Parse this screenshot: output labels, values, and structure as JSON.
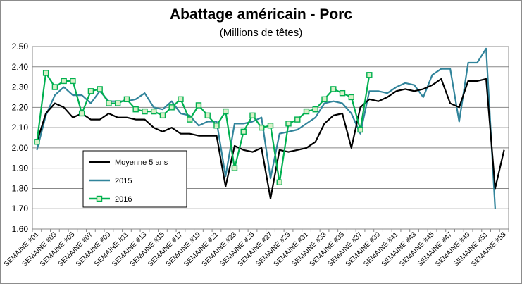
{
  "chart_data": {
    "type": "line",
    "title": "Abattage américain - Porc",
    "subtitle": "(Millions de têtes)",
    "ylim": [
      1.6,
      2.5
    ],
    "y_ticks": [
      "1.60",
      "1.70",
      "1.80",
      "1.90",
      "2.00",
      "2.10",
      "2.20",
      "2.30",
      "2.40",
      "2.50"
    ],
    "grid": true,
    "legend_position": "lower-left",
    "x_tick_labels": [
      "SEMAINE #01",
      "SEMAINE #03",
      "SEMAINE #05",
      "SEMAINE #07",
      "SEMAINE #09",
      "SEMAINE #11",
      "SEMAINE #13",
      "SEMAINE #15",
      "SEMAINE #17",
      "SEMAINE #19",
      "SEMAINE #21",
      "SEMAINE #23",
      "SEMAINE #25",
      "SEMAINE #27",
      "SEMAINE #29",
      "SEMAINE #31",
      "SEMAINE #33",
      "SEMAINE #35",
      "SEMAINE #37",
      "SEMAINE #39",
      "SEMAINE #41",
      "SEMAINE #43",
      "SEMAINE #45",
      "SEMAINE #47",
      "SEMAINE #49",
      "SEMAINE #51",
      "SEMAINE #53"
    ],
    "x": [
      1,
      2,
      3,
      4,
      5,
      6,
      7,
      8,
      9,
      10,
      11,
      12,
      13,
      14,
      15,
      16,
      17,
      18,
      19,
      20,
      21,
      22,
      23,
      24,
      25,
      26,
      27,
      28,
      29,
      30,
      31,
      32,
      33,
      34,
      35,
      36,
      37,
      38,
      39,
      40,
      41,
      42,
      43,
      44,
      45,
      46,
      47,
      48,
      49,
      50,
      51,
      52,
      53
    ],
    "series": [
      {
        "name": "Moyenne 5 ans",
        "color": "#000000",
        "values": [
          2.03,
          2.17,
          2.22,
          2.2,
          2.15,
          2.17,
          2.14,
          2.14,
          2.17,
          2.15,
          2.15,
          2.14,
          2.14,
          2.1,
          2.08,
          2.1,
          2.07,
          2.07,
          2.06,
          2.06,
          2.06,
          1.81,
          2.01,
          1.99,
          1.98,
          2.0,
          1.75,
          1.99,
          1.98,
          1.99,
          2.0,
          2.03,
          2.12,
          2.16,
          2.17,
          2.0,
          2.2,
          2.24,
          2.23,
          2.25,
          2.28,
          2.29,
          2.28,
          2.29,
          2.31,
          2.34,
          2.22,
          2.2,
          2.33,
          2.33,
          2.34,
          1.8,
          1.99
        ]
      },
      {
        "name": "2015",
        "color": "#31849b",
        "values": [
          1.99,
          2.16,
          2.26,
          2.3,
          2.26,
          2.26,
          2.22,
          2.28,
          2.23,
          2.23,
          2.23,
          2.24,
          2.27,
          2.2,
          2.19,
          2.23,
          2.17,
          2.16,
          2.11,
          2.13,
          2.13,
          1.86,
          2.12,
          2.12,
          2.13,
          2.15,
          1.85,
          2.07,
          2.08,
          2.09,
          2.12,
          2.15,
          2.22,
          2.23,
          2.22,
          2.17,
          2.07,
          2.28,
          2.28,
          2.27,
          2.3,
          2.32,
          2.31,
          2.25,
          2.36,
          2.39,
          2.39,
          2.13,
          2.42,
          2.42,
          2.49,
          1.7,
          null
        ]
      },
      {
        "name": "2016",
        "color": "#00b050",
        "values": [
          2.03,
          2.37,
          2.3,
          2.33,
          2.33,
          2.17,
          2.28,
          2.29,
          2.22,
          2.22,
          2.24,
          2.19,
          2.18,
          2.18,
          2.16,
          2.2,
          2.24,
          2.14,
          2.21,
          2.16,
          2.11,
          2.18,
          1.9,
          2.08,
          2.16,
          2.1,
          2.11,
          1.83,
          2.12,
          2.14,
          2.18,
          2.19,
          2.24,
          2.29,
          2.27,
          2.25,
          2.09,
          2.36,
          null,
          null,
          null,
          null,
          null,
          null,
          null,
          null,
          null,
          null,
          null,
          null,
          null,
          null,
          null
        ]
      }
    ]
  }
}
